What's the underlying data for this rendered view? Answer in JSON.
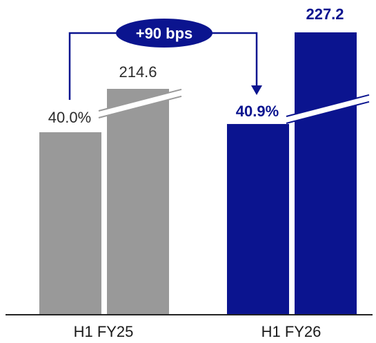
{
  "chart_data": {
    "type": "bar",
    "categories": [
      "H1 FY25",
      "H1 FY26"
    ],
    "series": [
      {
        "values": [
          40.0,
          40.9
        ],
        "labels": [
          "40.0%",
          "40.9%"
        ]
      },
      {
        "values": [
          214.6,
          227.2
        ],
        "labels": [
          "214.6",
          "227.2"
        ]
      }
    ],
    "axis_break": true,
    "annotation": "+90 bps",
    "colors": {
      "prior_period": "#999999",
      "current_period": "#0b148f",
      "baseline": "#222222",
      "annotation_fill": "#0b148f",
      "annotation_text": "#ffffff"
    },
    "title": "",
    "xlabel": "",
    "ylabel": ""
  }
}
